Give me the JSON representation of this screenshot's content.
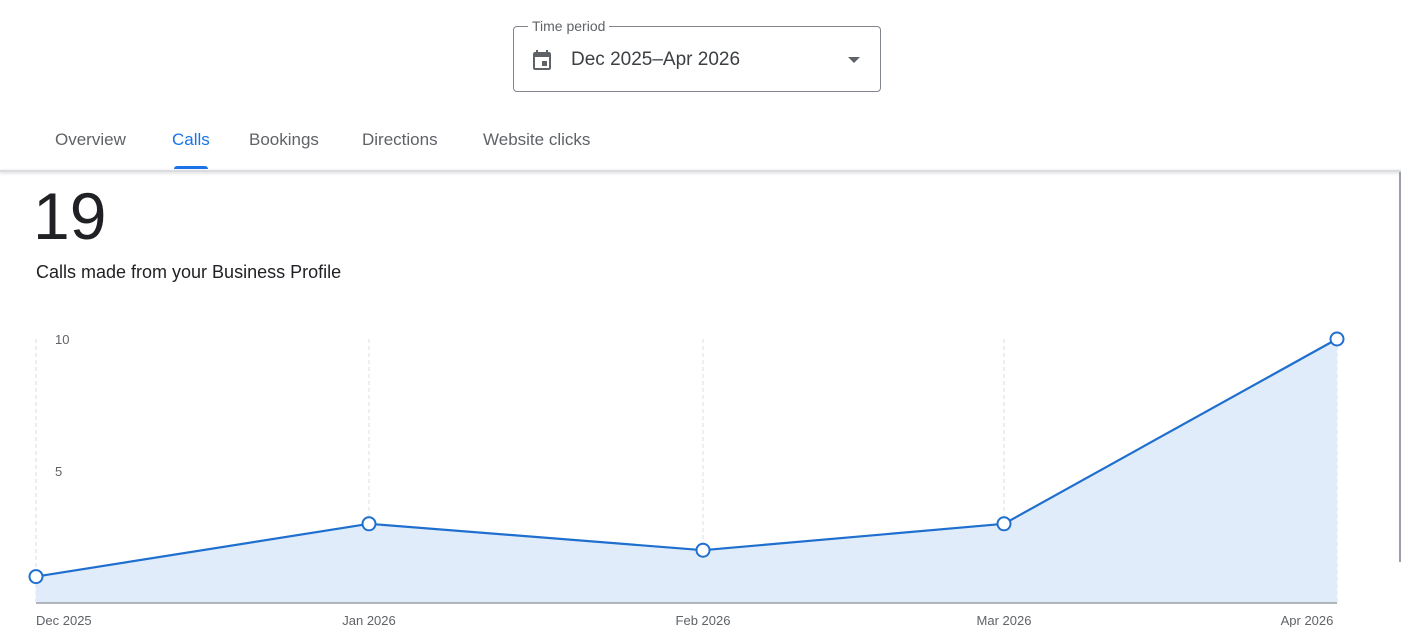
{
  "time_period": {
    "label": "Time period",
    "value": "Dec 2025–Apr 2026",
    "icon": "calendar-icon",
    "dropdown_icon": "arrow-drop-down-icon"
  },
  "tabs": [
    {
      "label": "Overview",
      "active": false
    },
    {
      "label": "Calls",
      "active": true
    },
    {
      "label": "Bookings",
      "active": false
    },
    {
      "label": "Directions",
      "active": false
    },
    {
      "label": "Website clicks",
      "active": false
    }
  ],
  "summary": {
    "total": "19",
    "caption": "Calls made from your Business Profile"
  },
  "colors": {
    "accent": "#1a73e8",
    "line": "#1f6fcf",
    "area_fill": "#e1ecfb"
  },
  "chart_data": {
    "type": "area",
    "categories": [
      "Dec 2025",
      "Jan 2026",
      "Feb 2026",
      "Mar 2026",
      "Apr 2026"
    ],
    "values": [
      1,
      3,
      2,
      3,
      10
    ],
    "y_ticks": [
      5,
      10
    ],
    "ylim": [
      0,
      10
    ],
    "grid": "vertical-dashed"
  }
}
